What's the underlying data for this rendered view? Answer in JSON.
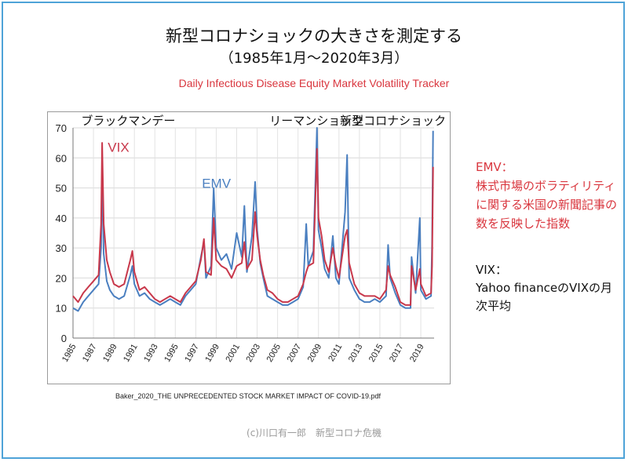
{
  "title": {
    "main": "新型コロナショックの大きさを測定する",
    "period": "（1985年1月～2020年3月）",
    "subtitle": "Daily Infectious Disease Equity Market Volatility Tracker"
  },
  "side": {
    "emv_heading": "EMV：",
    "emv_body": "株式市場のボラティリティに関する米国の新聞記事の数を反映した指数",
    "vix_heading": "VIX：",
    "vix_body": "Yahoo financeのVIXの月次平均"
  },
  "source": "Baker_2020_THE UNPRECEDENTED STOCK MARKET IMPACT OF COVID-19.pdf",
  "credit": "(c)川口有一郎　新型コロナ危機",
  "colors": {
    "vix": "#c8384b",
    "emv": "#4a7fc0",
    "frame": "#4ea3d8"
  },
  "chart_data": {
    "type": "line",
    "xlabel": "",
    "ylabel": "",
    "xlim": [
      1985,
      2020.3
    ],
    "ylim": [
      0,
      70
    ],
    "yticks": [
      0,
      10,
      20,
      30,
      40,
      50,
      60,
      70
    ],
    "xticks": [
      "1985",
      "1987",
      "1989",
      "1991",
      "1993",
      "1995",
      "1997",
      "1999",
      "2001",
      "2003",
      "2005",
      "2007",
      "2009",
      "2011",
      "2013",
      "2015",
      "2017",
      "2019"
    ],
    "grid": true,
    "annotations": [
      {
        "text": "ブラックマンデー",
        "x": 1987.8
      },
      {
        "text": "リーマンショック",
        "x": 2008.8
      },
      {
        "text": "新型コロナショック",
        "x": 2020.2
      }
    ],
    "series": [
      {
        "name": "VIX",
        "x": [
          1985,
          1985.5,
          1986,
          1986.5,
          1987,
          1987.5,
          1987.75,
          1987.85,
          1988,
          1988.3,
          1988.6,
          1989,
          1989.5,
          1990,
          1990.6,
          1990.8,
          1991,
          1991.5,
          1992,
          1992.5,
          1993,
          1993.5,
          1994,
          1994.5,
          1995,
          1995.5,
          1996,
          1996.5,
          1997,
          1997.5,
          1997.8,
          1998,
          1998.5,
          1998.75,
          1999,
          1999.5,
          2000,
          2000.5,
          2001,
          2001.5,
          2001.75,
          2002,
          2002.5,
          2002.8,
          2003,
          2003.3,
          2003.6,
          2004,
          2004.5,
          2005,
          2005.5,
          2006,
          2006.5,
          2007,
          2007.5,
          2007.8,
          2008,
          2008.5,
          2008.85,
          2009,
          2009.3,
          2009.6,
          2010,
          2010.4,
          2010.7,
          2011,
          2011.6,
          2011.8,
          2012,
          2012.5,
          2013,
          2013.5,
          2014,
          2014.5,
          2015,
          2015.6,
          2015.8,
          2016,
          2016.5,
          2017,
          2017.5,
          2018,
          2018.1,
          2018.5,
          2018.9,
          2019,
          2019.5,
          2020,
          2020.1,
          2020.2
        ],
        "y": [
          14,
          12,
          15,
          17,
          19,
          21,
          38,
          65,
          38,
          26,
          22,
          18,
          17,
          18,
          26,
          29,
          22,
          16,
          17,
          15,
          13,
          12,
          13,
          14,
          13,
          12,
          15,
          17,
          19,
          26,
          33,
          22,
          21,
          40,
          26,
          24,
          23,
          20,
          24,
          25,
          32,
          23,
          26,
          42,
          34,
          26,
          21,
          16,
          15,
          13,
          12,
          12,
          13,
          14,
          18,
          22,
          24,
          25,
          63,
          40,
          34,
          26,
          22,
          30,
          24,
          20,
          34,
          36,
          25,
          18,
          15,
          14,
          14,
          14,
          13,
          16,
          24,
          21,
          17,
          12,
          11,
          11,
          24,
          16,
          23,
          18,
          14,
          15,
          24,
          57
        ]
      },
      {
        "name": "EMV",
        "x": [
          1985,
          1985.5,
          1986,
          1986.5,
          1987,
          1987.5,
          1987.75,
          1987.85,
          1988,
          1988.3,
          1988.6,
          1989,
          1989.5,
          1990,
          1990.6,
          1990.8,
          1991,
          1991.5,
          1992,
          1992.5,
          1993,
          1993.5,
          1994,
          1994.5,
          1995,
          1995.5,
          1996,
          1996.5,
          1997,
          1997.5,
          1997.8,
          1998,
          1998.5,
          1998.75,
          1999,
          1999.5,
          2000,
          2000.5,
          2001,
          2001.5,
          2001.75,
          2002,
          2002.5,
          2002.8,
          2003,
          2003.3,
          2003.6,
          2004,
          2004.5,
          2005,
          2005.5,
          2006,
          2006.5,
          2007,
          2007.5,
          2007.8,
          2008,
          2008.5,
          2008.85,
          2009,
          2009.3,
          2009.6,
          2010,
          2010.4,
          2010.7,
          2011,
          2011.6,
          2011.8,
          2012,
          2012.5,
          2013,
          2013.5,
          2014,
          2014.5,
          2015,
          2015.6,
          2015.8,
          2016,
          2016.5,
          2017,
          2017.5,
          2018,
          2018.1,
          2018.5,
          2018.9,
          2019,
          2019.5,
          2020,
          2020.1,
          2020.2
        ],
        "y": [
          10,
          9,
          12,
          14,
          16,
          18,
          30,
          56,
          28,
          19,
          16,
          14,
          13,
          14,
          21,
          24,
          18,
          14,
          15,
          13,
          12,
          11,
          12,
          13,
          12,
          11,
          14,
          16,
          18,
          27,
          32,
          20,
          24,
          50,
          30,
          26,
          28,
          23,
          35,
          27,
          44,
          22,
          34,
          52,
          36,
          25,
          20,
          14,
          13,
          12,
          11,
          11,
          12,
          13,
          17,
          38,
          24,
          29,
          70,
          36,
          30,
          23,
          20,
          34,
          20,
          18,
          42,
          61,
          20,
          16,
          13,
          12,
          12,
          13,
          12,
          14,
          31,
          20,
          15,
          11,
          10,
          10,
          27,
          15,
          40,
          16,
          13,
          14,
          31,
          69
        ]
      }
    ]
  }
}
